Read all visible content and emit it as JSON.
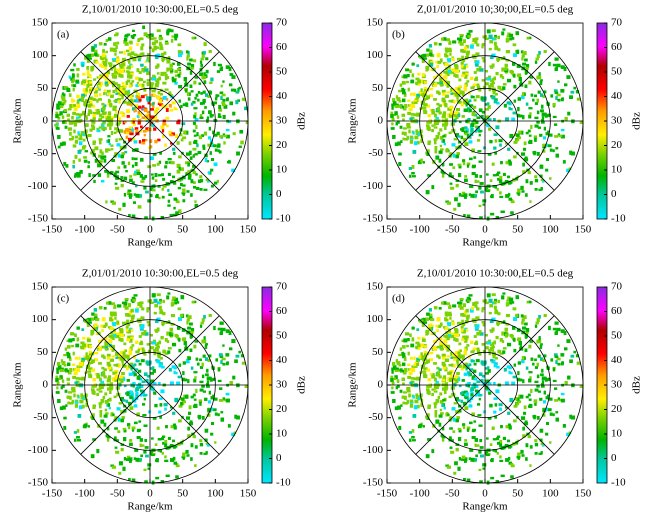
{
  "chart_data": [
    {
      "type": "ppi",
      "title": "Z,10/01/2010 10:30:00,EL=0.5 deg",
      "panel_label": "(a)",
      "xlabel": "Range/km",
      "ylabel": "Range/km",
      "xlim": [
        -150,
        150
      ],
      "ylim": [
        -150,
        150
      ],
      "xticks": [
        -150,
        -100,
        -50,
        0,
        50,
        100,
        150
      ],
      "yticks": [
        -150,
        -100,
        -50,
        0,
        50,
        100,
        150
      ],
      "rings": [
        50,
        100,
        150
      ],
      "colorbar": {
        "label": "dBz",
        "lim": [
          -10,
          70
        ],
        "ticks": [
          -10,
          0,
          10,
          20,
          30,
          40,
          50,
          60,
          70
        ]
      }
    },
    {
      "type": "ppi",
      "title": "Z,01/01/2010 10;30;00,EL=0.5 deg",
      "panel_label": "(b)",
      "xlabel": "Range/km",
      "ylabel": "Range/km",
      "xlim": [
        -150,
        150
      ],
      "ylim": [
        -150,
        150
      ],
      "xticks": [
        -150,
        -100,
        -50,
        0,
        50,
        100,
        150
      ],
      "yticks": [
        -150,
        -100,
        -50,
        0,
        50,
        100,
        150
      ],
      "rings": [
        50,
        100,
        150
      ],
      "colorbar": {
        "label": "dBz",
        "lim": [
          -10,
          70
        ],
        "ticks": [
          -10,
          0,
          10,
          20,
          30,
          40,
          50,
          60,
          70
        ]
      }
    },
    {
      "type": "ppi",
      "title": "Z,01/01/2010 10:30:00,EL=0.5 deg",
      "panel_label": "(c)",
      "xlabel": "Range/km",
      "ylabel": "Range/km",
      "xlim": [
        -150,
        150
      ],
      "ylim": [
        -150,
        150
      ],
      "xticks": [
        -150,
        -100,
        -50,
        0,
        50,
        100,
        150
      ],
      "yticks": [
        -150,
        -100,
        -50,
        0,
        50,
        100,
        150
      ],
      "rings": [
        50,
        100,
        150
      ],
      "colorbar": {
        "label": "dBz",
        "lim": [
          -10,
          70
        ],
        "ticks": [
          -10,
          0,
          10,
          20,
          30,
          40,
          50,
          60,
          70
        ]
      }
    },
    {
      "type": "ppi",
      "title": "Z,10/01/2010 10:30:00,EL=0.5 deg",
      "panel_label": "(d)",
      "xlabel": "Range/km",
      "ylabel": "Range/km",
      "xlim": [
        -150,
        150
      ],
      "ylim": [
        -150,
        150
      ],
      "xticks": [
        -150,
        -100,
        -50,
        0,
        50,
        100,
        150
      ],
      "yticks": [
        -150,
        -100,
        -50,
        0,
        50,
        100,
        150
      ],
      "rings": [
        50,
        100,
        150
      ],
      "colorbar": {
        "label": "dBz",
        "lim": [
          -10,
          70
        ],
        "ticks": [
          -10,
          0,
          10,
          20,
          30,
          40,
          50,
          60,
          70
        ]
      }
    }
  ]
}
